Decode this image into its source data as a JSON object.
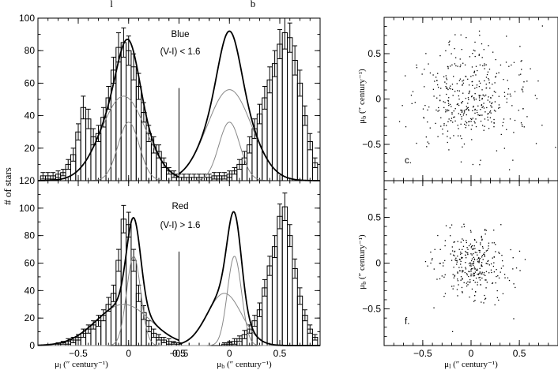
{
  "top_labels": {
    "l": "l",
    "b": "b"
  },
  "y_axis_label": "# of stars",
  "x_label_l": "μ",
  "x_label_l_sub": "l",
  "x_label_b": "μ",
  "x_label_b_sub": "b",
  "x_label_units": "(″ century⁻¹)",
  "y_label_scatter": "μ",
  "y_label_scatter_sub": "b",
  "colors": {
    "axes": "#000000",
    "components": "#888888",
    "total": "#000000"
  },
  "chart_data": [
    {
      "panel": "top-histograms",
      "type": "bar",
      "annotation": "Blue",
      "annotation2": "(V-I) < 1.6",
      "xlim": [
        -0.9,
        1.9
      ],
      "ylim": [
        0,
        100
      ],
      "y_ticks": [
        20,
        40,
        60,
        80,
        100
      ],
      "x": [
        -0.85,
        -0.8,
        -0.75,
        -0.7,
        -0.65,
        -0.6,
        -0.55,
        -0.5,
        -0.45,
        -0.4,
        -0.35,
        -0.3,
        -0.25,
        -0.2,
        -0.15,
        -0.1,
        -0.05,
        0.0,
        0.05,
        0.1,
        0.15,
        0.2,
        0.25,
        0.3,
        0.35,
        0.4,
        0.45,
        0.5,
        0.55,
        0.6,
        0.65,
        0.7,
        0.75,
        0.8,
        0.85,
        0.9,
        0.95,
        1.0,
        1.05,
        1.1,
        1.15,
        1.2,
        1.25,
        1.3,
        1.35,
        1.4,
        1.45,
        1.5,
        1.55,
        1.6,
        1.65,
        1.7,
        1.75,
        1.8,
        1.85
      ],
      "values": [
        3,
        3,
        3,
        4,
        5,
        10,
        16,
        30,
        45,
        38,
        27,
        29,
        39,
        51,
        68,
        82,
        85,
        80,
        70,
        58,
        42,
        29,
        22,
        18,
        11,
        6,
        4,
        2,
        2,
        2,
        2,
        2,
        2,
        2,
        3,
        3,
        3,
        4,
        6,
        10,
        14,
        22,
        32,
        41,
        51,
        62,
        72,
        84,
        91,
        88,
        74,
        60,
        40,
        24,
        11
      ],
      "errors": [
        2,
        2,
        2,
        2,
        2,
        3,
        4,
        5,
        7,
        6,
        5,
        5,
        6,
        7,
        8,
        9,
        9,
        9,
        8,
        8,
        6,
        5,
        5,
        4,
        3,
        2,
        2,
        2,
        2,
        2,
        2,
        2,
        2,
        2,
        2,
        2,
        2,
        2,
        2,
        3,
        4,
        5,
        6,
        6,
        7,
        8,
        8,
        9,
        10,
        9,
        9,
        8,
        6,
        5,
        3
      ],
      "series": [
        {
          "name": "",
          "role": "total",
          "components": [
            [
              0.0,
              0.105,
              36
            ],
            [
              -0.05,
              0.22,
              52
            ]
          ]
        },
        {
          "name": "",
          "role": "component",
          "components": [
            [
              0.0,
              0.105,
              36
            ]
          ]
        },
        {
          "name": "",
          "role": "component",
          "components": [
            [
              -0.05,
              0.22,
              52
            ]
          ]
        }
      ],
      "b_offset": 1.0,
      "b_series": [
        [
          0.0,
          0.105,
          36
        ],
        [
          0.0,
          0.22,
          56
        ]
      ]
    },
    {
      "panel": "bottom-histograms",
      "type": "bar",
      "annotation": "Red",
      "annotation2": "(V-I) > 1.6",
      "xlim": [
        -0.9,
        1.9
      ],
      "ylim": [
        0,
        120
      ],
      "y_ticks": [
        0,
        20,
        40,
        60,
        80,
        100,
        120
      ],
      "x": [
        -0.85,
        -0.8,
        -0.75,
        -0.7,
        -0.65,
        -0.6,
        -0.55,
        -0.5,
        -0.45,
        -0.4,
        -0.35,
        -0.3,
        -0.25,
        -0.2,
        -0.15,
        -0.1,
        -0.05,
        0.0,
        0.05,
        0.1,
        0.15,
        0.2,
        0.25,
        0.3,
        0.35,
        0.4,
        0.45,
        0.5,
        0.55,
        0.6,
        0.65,
        0.7,
        0.75,
        0.8,
        0.85,
        0.9,
        0.95,
        1.0,
        1.05,
        1.1,
        1.15,
        1.2,
        1.25,
        1.3,
        1.35,
        1.4,
        1.45,
        1.5,
        1.55,
        1.6,
        1.65,
        1.7,
        1.75,
        1.8,
        1.85
      ],
      "values": [
        0,
        0,
        0,
        1,
        2,
        3,
        4,
        6,
        9,
        12,
        15,
        18,
        22,
        30,
        38,
        62,
        92,
        88,
        62,
        38,
        24,
        14,
        9,
        6,
        4,
        3,
        2,
        1,
        0,
        0,
        0,
        0,
        0,
        0,
        0,
        0,
        1,
        2,
        3,
        5,
        8,
        12,
        18,
        26,
        42,
        58,
        72,
        94,
        101,
        80,
        56,
        36,
        22,
        12,
        6
      ],
      "errors": [
        1,
        1,
        1,
        1,
        1,
        2,
        2,
        2,
        3,
        3,
        3,
        4,
        4,
        5,
        6,
        8,
        10,
        9,
        8,
        6,
        5,
        4,
        3,
        2,
        2,
        2,
        1,
        1,
        1,
        1,
        1,
        1,
        1,
        1,
        1,
        1,
        1,
        1,
        2,
        2,
        3,
        3,
        4,
        5,
        6,
        7,
        8,
        9,
        10,
        8,
        7,
        6,
        4,
        3,
        2
      ],
      "series": [
        {
          "name": "",
          "role": "total",
          "components": [
            [
              0.05,
              0.07,
              65
            ],
            [
              -0.05,
              0.27,
              30
            ]
          ]
        },
        {
          "name": "",
          "role": "component",
          "components": [
            [
              0.05,
              0.07,
              65
            ]
          ]
        },
        {
          "name": "",
          "role": "component",
          "components": [
            [
              -0.05,
              0.27,
              30
            ]
          ]
        }
      ],
      "b_offset": 1.0,
      "b_series": [
        [
          0.05,
          0.07,
          65
        ],
        [
          -0.05,
          0.17,
          38
        ]
      ]
    },
    {
      "panel": "c",
      "type": "scatter",
      "annotation": "c.",
      "xlim": [
        -0.9,
        0.9
      ],
      "ylim": [
        -0.9,
        0.9
      ],
      "x_ticks": [
        -0.5,
        0,
        0.5
      ],
      "y_ticks": [
        -0.5,
        0,
        0.5
      ],
      "n_points": 420,
      "spread": 0.3
    },
    {
      "panel": "f",
      "type": "scatter",
      "annotation": "f.",
      "xlim": [
        -0.9,
        0.9
      ],
      "ylim": [
        -0.9,
        0.9
      ],
      "x_ticks": [
        -0.5,
        0,
        0.5
      ],
      "y_ticks": [
        -0.5,
        0,
        0.5
      ],
      "n_points": 320,
      "spread": 0.18
    }
  ]
}
